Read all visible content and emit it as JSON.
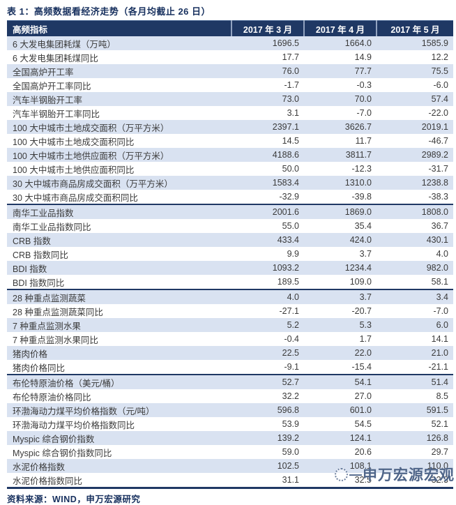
{
  "title": "表 1：高频数据看经济走势（各月均截止 26 日）",
  "table": {
    "columns": [
      "高频指标",
      "2017 年 3 月",
      "2017 年 4 月",
      "2017 年 5 月"
    ],
    "rows": [
      {
        "label": "6 大发电集团耗煤（万吨）",
        "values": [
          "1696.5",
          "1664.0",
          "1585.9"
        ],
        "section_start": false
      },
      {
        "label": "6 大发电集团耗煤同比",
        "values": [
          "17.7",
          "14.9",
          "12.2"
        ],
        "section_start": false
      },
      {
        "label": "全国高炉开工率",
        "values": [
          "76.0",
          "77.7",
          "75.5"
        ],
        "section_start": false
      },
      {
        "label": "全国高炉开工率同比",
        "values": [
          "-1.7",
          "-0.3",
          "-6.0"
        ],
        "section_start": false
      },
      {
        "label": "汽车半钢胎开工率",
        "values": [
          "73.0",
          "70.0",
          "57.4"
        ],
        "section_start": false
      },
      {
        "label": "汽车半钢胎开工率同比",
        "values": [
          "3.1",
          "-7.0",
          "-22.0"
        ],
        "section_start": false
      },
      {
        "label": "100 大中城市土地成交面积（万平方米）",
        "values": [
          "2397.1",
          "3626.7",
          "2019.1"
        ],
        "section_start": false
      },
      {
        "label": "100 大中城市土地成交面积同比",
        "values": [
          "14.5",
          "11.7",
          "-46.7"
        ],
        "section_start": false
      },
      {
        "label": "100 大中城市土地供应面积（万平方米）",
        "values": [
          "4188.6",
          "3811.7",
          "2989.2"
        ],
        "section_start": false
      },
      {
        "label": "100 大中城市土地供应面积同比",
        "values": [
          "50.0",
          "-12.3",
          "-31.7"
        ],
        "section_start": false
      },
      {
        "label": "30 大中城市商品房成交面积（万平方米）",
        "values": [
          "1583.4",
          "1310.0",
          "1238.8"
        ],
        "section_start": false
      },
      {
        "label": "30 大中城市商品房成交面积同比",
        "values": [
          "-32.9",
          "-39.8",
          "-38.3"
        ],
        "section_start": false
      },
      {
        "label": "南华工业品指数",
        "values": [
          "2001.6",
          "1869.0",
          "1808.0"
        ],
        "section_start": true
      },
      {
        "label": "南华工业品指数同比",
        "values": [
          "55.0",
          "35.4",
          "36.7"
        ],
        "section_start": false
      },
      {
        "label": "CRB 指数",
        "values": [
          "433.4",
          "424.0",
          "430.1"
        ],
        "section_start": false
      },
      {
        "label": "CRB 指数同比",
        "values": [
          "9.9",
          "3.7",
          "4.0"
        ],
        "section_start": false
      },
      {
        "label": "BDI 指数",
        "values": [
          "1093.2",
          "1234.4",
          "982.0"
        ],
        "section_start": false
      },
      {
        "label": "BDI 指数同比",
        "values": [
          "189.5",
          "109.0",
          "58.1"
        ],
        "section_start": false
      },
      {
        "label": "28 种重点监测蔬菜",
        "values": [
          "4.0",
          "3.7",
          "3.4"
        ],
        "section_start": true
      },
      {
        "label": "28 种重点监测蔬菜同比",
        "values": [
          "-27.1",
          "-20.7",
          "-7.0"
        ],
        "section_start": false
      },
      {
        "label": "7 种重点监测水果",
        "values": [
          "5.2",
          "5.3",
          "6.0"
        ],
        "section_start": false
      },
      {
        "label": "7 种重点监测水果同比",
        "values": [
          "-0.4",
          "1.7",
          "14.1"
        ],
        "section_start": false
      },
      {
        "label": "猪肉价格",
        "values": [
          "22.5",
          "22.0",
          "21.0"
        ],
        "section_start": false
      },
      {
        "label": "猪肉价格同比",
        "values": [
          "-9.1",
          "-15.4",
          "-21.1"
        ],
        "section_start": false
      },
      {
        "label": "布伦特原油价格（美元/桶）",
        "values": [
          "52.7",
          "54.1",
          "51.4"
        ],
        "section_start": true
      },
      {
        "label": "布伦特原油价格同比",
        "values": [
          "32.2",
          "27.0",
          "8.5"
        ],
        "section_start": false
      },
      {
        "label": "环渤海动力煤平均价格指数（元/吨）",
        "values": [
          "596.8",
          "601.0",
          "591.5"
        ],
        "section_start": false
      },
      {
        "label": "环渤海动力煤平均价格指数同比",
        "values": [
          "53.9",
          "54.5",
          "52.1"
        ],
        "section_start": false
      },
      {
        "label": "Myspic 综合钢价指数",
        "values": [
          "139.2",
          "124.1",
          "126.8"
        ],
        "section_start": false
      },
      {
        "label": "Myspic 综合钢价指数同比",
        "values": [
          "59.0",
          "20.6",
          "29.7"
        ],
        "section_start": false
      },
      {
        "label": "水泥价格指数",
        "values": [
          "102.5",
          "108.1",
          "110.0"
        ],
        "section_start": false
      },
      {
        "label": "水泥价格指数同比",
        "values": [
          "31.1",
          "32.5",
          "32.3"
        ],
        "section_start": false
      }
    ]
  },
  "footer": {
    "source": "资料来源：WIND，申万宏源研究"
  },
  "watermark": {
    "text": "申万宏源宏观",
    "logo": "swhy-logo",
    "dash": "—"
  },
  "colors": {
    "header_bg": "#1f3864",
    "header_text": "#ffffff",
    "row_alt_bg": "#d9e2f1",
    "title_text": "#17305e",
    "body_text": "#3b3b3b",
    "section_border": "#1f3864"
  }
}
